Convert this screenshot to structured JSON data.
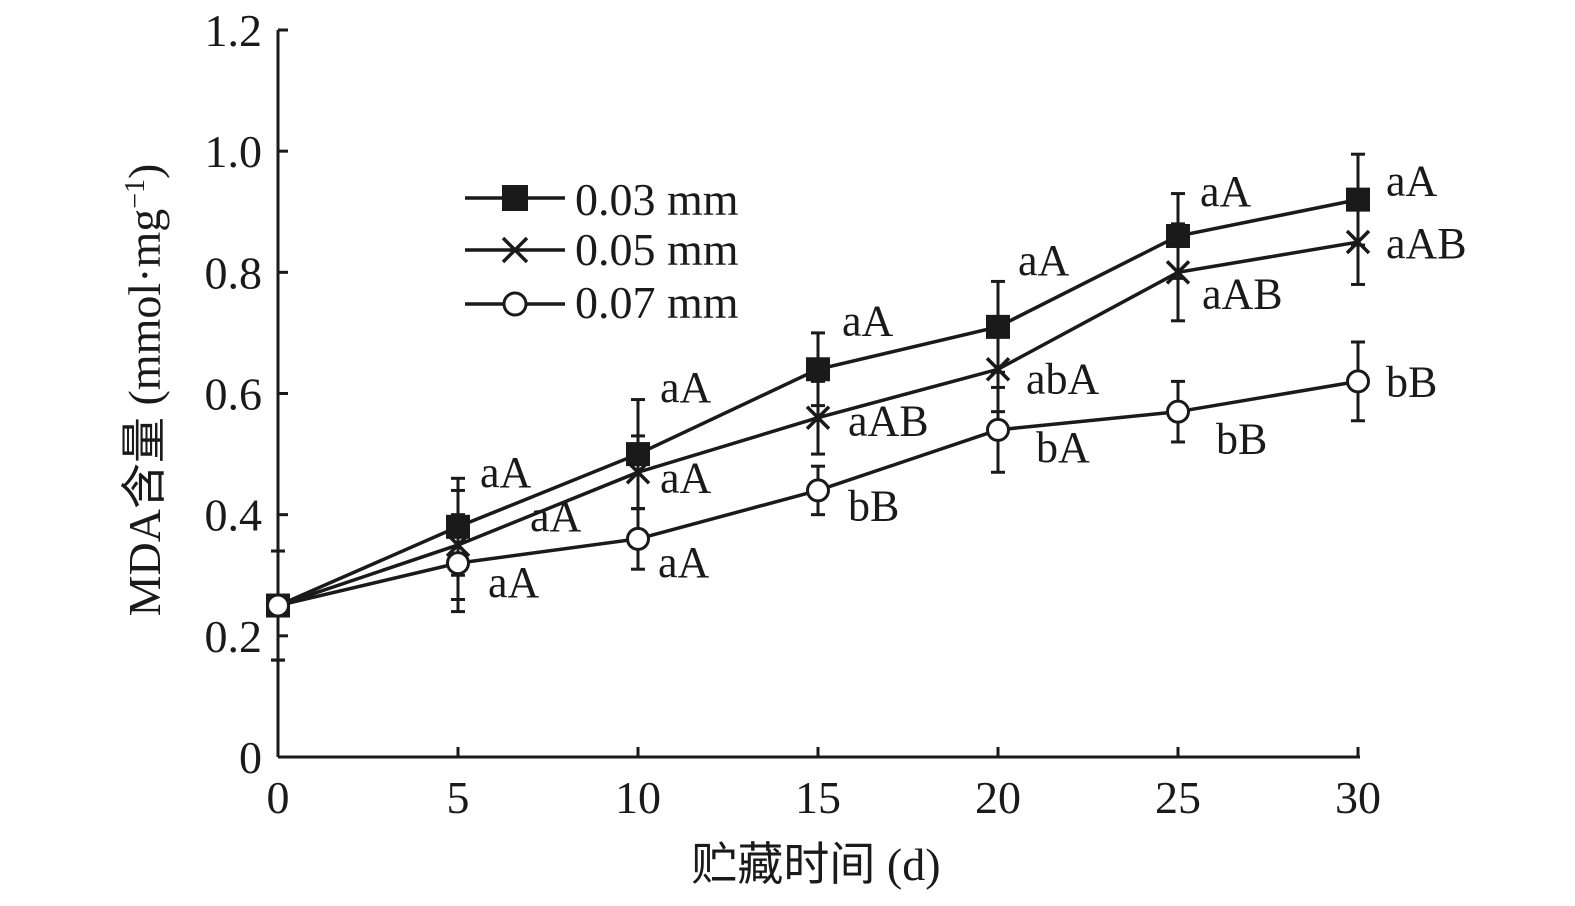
{
  "chart_data": {
    "type": "line",
    "title": "",
    "xlabel": "贮藏时间 (d)",
    "ylabel": {
      "main": "MDA含量 (mmol·mg",
      "sup": "−1",
      "close": ")"
    },
    "xlim": [
      0,
      30
    ],
    "ylim": [
      0,
      1.2
    ],
    "x": [
      0,
      5,
      10,
      15,
      20,
      25,
      30
    ],
    "x_tick_labels": [
      "0",
      "5",
      "10",
      "15",
      "20",
      "25",
      "30"
    ],
    "y_ticks": [
      0,
      0.2,
      0.4,
      0.6,
      0.8,
      1.0,
      1.2
    ],
    "y_tick_labels": [
      "0",
      "0.2",
      "0.4",
      "0.6",
      "0.8",
      "1.0",
      "1.2"
    ],
    "grid": false,
    "legend_position": "upper-left",
    "series": [
      {
        "name": "0.03 mm",
        "marker": "filled-square",
        "values": [
          0.25,
          0.38,
          0.5,
          0.64,
          0.71,
          0.86,
          0.92
        ],
        "errors": [
          0.09,
          0.08,
          0.09,
          0.06,
          0.075,
          0.07,
          0.075
        ],
        "labels": [
          "",
          "aA",
          "aA",
          "aA",
          "aA",
          "aA",
          "aA"
        ]
      },
      {
        "name": "0.05 mm",
        "marker": "cross",
        "values": [
          0.25,
          0.35,
          0.47,
          0.56,
          0.64,
          0.8,
          0.85
        ],
        "errors": [
          0.09,
          0.09,
          0.06,
          0.06,
          0.07,
          0.08,
          0.07
        ],
        "labels": [
          "",
          "aA",
          "aA",
          "aAB",
          "abA",
          "aAB",
          "aAB"
        ]
      },
      {
        "name": "0.07 mm",
        "marker": "open-circle",
        "values": [
          0.25,
          0.32,
          0.36,
          0.44,
          0.54,
          0.57,
          0.62
        ],
        "errors": [
          0.09,
          0.08,
          0.05,
          0.04,
          0.07,
          0.05,
          0.065
        ],
        "labels": [
          "",
          "aA",
          "aA",
          "bB",
          "bA",
          "bB",
          "bB"
        ]
      }
    ],
    "colors": {
      "line": "#1a1a1a",
      "marker_fill": "#1a1a1a",
      "open_fill": "#ffffff"
    }
  }
}
